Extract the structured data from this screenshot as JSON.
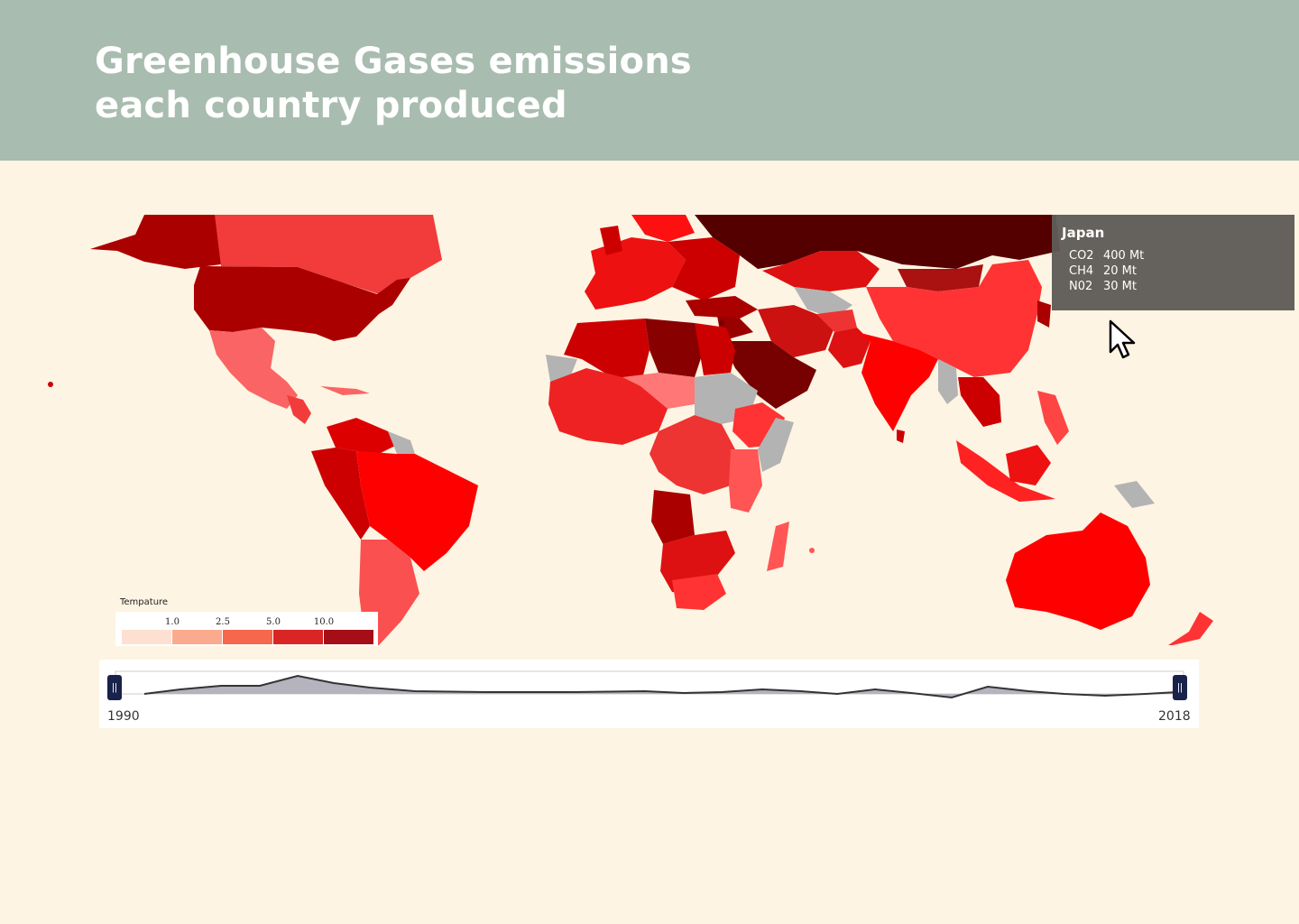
{
  "header": {
    "title_line1": "Greenhouse Gases emissions",
    "title_line2": "each country produced"
  },
  "map": {
    "type": "choropleth",
    "no_data_color": "#b3b3b3",
    "background_color": "#fdf4e3"
  },
  "tooltip": {
    "country": "Japan",
    "rows": [
      {
        "gas": "CO2",
        "value": "400 Mt"
      },
      {
        "gas": "CH4",
        "value": "20 Mt"
      },
      {
        "gas": "N02",
        "value": "30 Mt"
      }
    ]
  },
  "legend": {
    "title": "Tempature",
    "ticks": [
      "1.0",
      "2.5",
      "5.0",
      "10.0"
    ],
    "colors": [
      "#fde0d2",
      "#fbab8d",
      "#f6674b",
      "#d92523",
      "#a50e16"
    ]
  },
  "timeline": {
    "start_label": "1990",
    "end_label": "2018",
    "handle_glyph": "||"
  },
  "cursor": {
    "icon": "arrow-pointer-icon"
  }
}
